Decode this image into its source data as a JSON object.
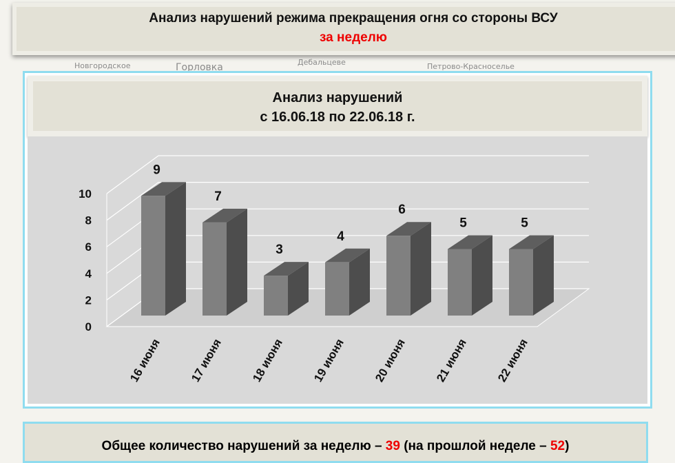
{
  "header": {
    "title": "Анализ нарушений режима прекращения огня со стороны ВСУ",
    "subtitle": "за неделю"
  },
  "map_labels": [
    "Новгородское",
    "Горловка",
    "Дебальцеве",
    "Петрово-Красноселье"
  ],
  "panel": {
    "title_line1": "Анализ нарушений",
    "title_line2": "с 16.06.18 по 22.06.18 г."
  },
  "chart_data": {
    "type": "bar",
    "title": "Анализ нарушений с 16.06.18 по 22.06.18 г.",
    "categories": [
      "16 июня",
      "17 июня",
      "18 июня",
      "19 июня",
      "20 июня",
      "21 июня",
      "22 июня"
    ],
    "values": [
      9,
      7,
      3,
      4,
      6,
      5,
      5
    ],
    "ylim": [
      0,
      10
    ],
    "yticks": [
      0,
      2,
      4,
      6,
      8,
      10
    ],
    "grid": true,
    "style": "3d",
    "bar_color": "#808080"
  },
  "summary": {
    "prefix": "Общее количество нарушений за неделю – ",
    "total": "39",
    "middle": " (на прошлой неделе – ",
    "previous": "52",
    "suffix": ")"
  }
}
